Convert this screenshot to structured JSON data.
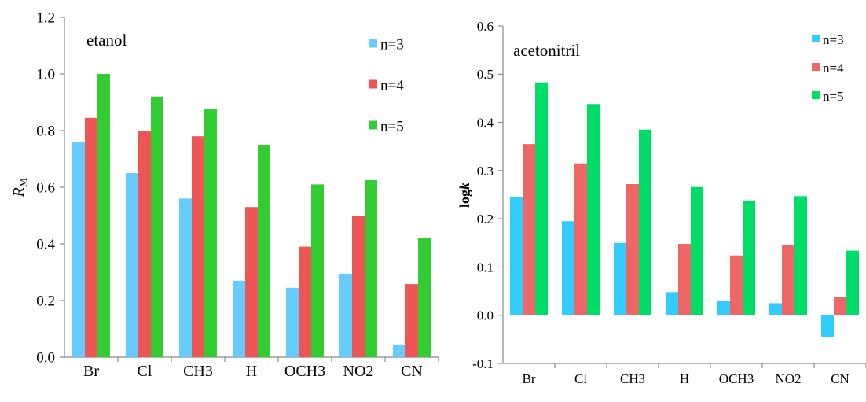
{
  "chart_data": [
    {
      "type": "bar",
      "title": "etanol",
      "xlabel": "",
      "ylabel": "R",
      "ylabel_sub": "M",
      "categories": [
        "Br",
        "Cl",
        "CH3",
        "H",
        "OCH3",
        "NO2",
        "CN"
      ],
      "ylim": [
        0.0,
        1.2
      ],
      "yticks": [
        "0.0",
        "0.2",
        "0.4",
        "0.6",
        "0.8",
        "1.0",
        "1.2"
      ],
      "grid": false,
      "legend_position": "top-right",
      "series": [
        {
          "name": "n=3",
          "color": "#66ccff",
          "values": [
            0.76,
            0.65,
            0.56,
            0.27,
            0.245,
            0.295,
            0.045
          ]
        },
        {
          "name": "n=4",
          "color": "#ee5555",
          "values": [
            0.845,
            0.8,
            0.78,
            0.53,
            0.39,
            0.5,
            0.258
          ]
        },
        {
          "name": "n=5",
          "color": "#33cc33",
          "values": [
            1.0,
            0.92,
            0.875,
            0.75,
            0.61,
            0.625,
            0.42
          ]
        }
      ]
    },
    {
      "type": "bar",
      "title": "acetonitril",
      "xlabel": "",
      "ylabel": "log",
      "ylabel_italic": "k",
      "categories": [
        "Br",
        "Cl",
        "CH3",
        "H",
        "OCH3",
        "NO2",
        "CN"
      ],
      "ylim": [
        -0.1,
        0.6
      ],
      "yticks": [
        "-0.1",
        "0.0",
        "0.1",
        "0.2",
        "0.3",
        "0.4",
        "0.5",
        "0.6"
      ],
      "grid": false,
      "legend_position": "top-right",
      "series": [
        {
          "name": "n=3",
          "color": "#33ccff",
          "values": [
            0.245,
            0.195,
            0.15,
            0.048,
            0.03,
            0.025,
            -0.045
          ]
        },
        {
          "name": "n=4",
          "color": "#ee6666",
          "values": [
            0.355,
            0.315,
            0.272,
            0.148,
            0.124,
            0.145,
            0.038
          ]
        },
        {
          "name": "n=5",
          "color": "#00dd66",
          "values": [
            0.483,
            0.438,
            0.385,
            0.266,
            0.238,
            0.247,
            0.134
          ]
        }
      ]
    }
  ]
}
